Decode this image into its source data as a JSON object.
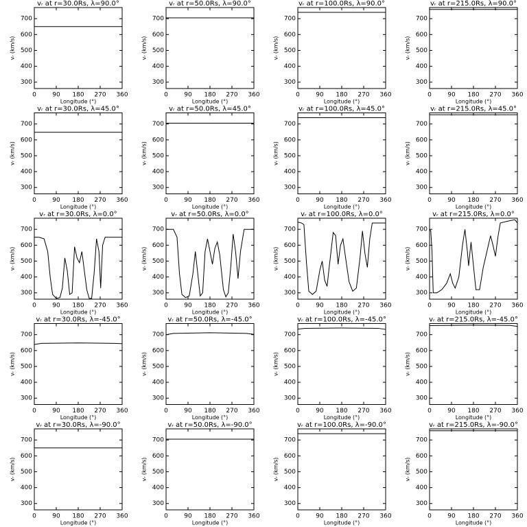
{
  "chart_data": [
    {
      "type": "line",
      "title": "vᵣ at r=30.0Rs, λ=90.0°",
      "xlabel": "Longitude (°)",
      "ylabel": "vᵣ (km/s)",
      "x": [
        0,
        360
      ],
      "series": [
        {
          "name": "vᵣ",
          "color": "#000000",
          "values": [
            650,
            650
          ]
        }
      ],
      "xlim": [
        0,
        360
      ],
      "xticks": [
        0,
        90,
        180,
        270,
        360
      ],
      "ylim": [
        260,
        770
      ],
      "yticks": [
        300,
        400,
        500,
        600,
        700
      ]
    },
    {
      "type": "line",
      "title": "vᵣ at r=50.0Rs, λ=90.0°",
      "xlabel": "Longitude (°)",
      "ylabel": "vᵣ (km/s)",
      "x": [
        0,
        360
      ],
      "series": [
        {
          "name": "vᵣ",
          "color": "#000000",
          "values": [
            705,
            705
          ]
        }
      ],
      "xlim": [
        0,
        360
      ],
      "xticks": [
        0,
        90,
        180,
        270,
        360
      ],
      "ylim": [
        260,
        770
      ],
      "yticks": [
        300,
        400,
        500,
        600,
        700
      ]
    },
    {
      "type": "line",
      "title": "vᵣ at r=100.0Rs, λ=90.0°",
      "xlabel": "Longitude (°)",
      "ylabel": "vᵣ (km/s)",
      "x": [
        0,
        360
      ],
      "series": [
        {
          "name": "vᵣ",
          "color": "#000000",
          "values": [
            740,
            740
          ]
        }
      ],
      "xlim": [
        0,
        360
      ],
      "xticks": [
        0,
        90,
        180,
        270,
        360
      ],
      "ylim": [
        260,
        770
      ],
      "yticks": [
        300,
        400,
        500,
        600,
        700
      ]
    },
    {
      "type": "line",
      "title": "vᵣ at r=215.0Rs, λ=90.0°",
      "xlabel": "Longitude (°)",
      "ylabel": "vᵣ (km/s)",
      "x": [
        0,
        360
      ],
      "series": [
        {
          "name": "vᵣ",
          "color": "#000000",
          "values": [
            758,
            758
          ]
        }
      ],
      "xlim": [
        0,
        360
      ],
      "xticks": [
        0,
        90,
        180,
        270,
        360
      ],
      "ylim": [
        260,
        770
      ],
      "yticks": [
        300,
        400,
        500,
        600,
        700
      ]
    },
    {
      "type": "line",
      "title": "vᵣ at r=30.0Rs, λ=45.0°",
      "xlabel": "Longitude (°)",
      "ylabel": "vᵣ (km/s)",
      "x": [
        0,
        360
      ],
      "series": [
        {
          "name": "vᵣ",
          "color": "#000000",
          "values": [
            648,
            648
          ]
        }
      ],
      "xlim": [
        0,
        360
      ],
      "xticks": [
        0,
        90,
        180,
        270,
        360
      ],
      "ylim": [
        260,
        770
      ],
      "yticks": [
        300,
        400,
        500,
        600,
        700
      ]
    },
    {
      "type": "line",
      "title": "vᵣ at r=50.0Rs, λ=45.0°",
      "xlabel": "Longitude (°)",
      "ylabel": "vᵣ (km/s)",
      "x": [
        0,
        360
      ],
      "series": [
        {
          "name": "vᵣ",
          "color": "#000000",
          "values": [
            705,
            705
          ]
        }
      ],
      "xlim": [
        0,
        360
      ],
      "xticks": [
        0,
        90,
        180,
        270,
        360
      ],
      "ylim": [
        260,
        770
      ],
      "yticks": [
        300,
        400,
        500,
        600,
        700
      ]
    },
    {
      "type": "line",
      "title": "vᵣ at r=100.0Rs, λ=45.0°",
      "xlabel": "Longitude (°)",
      "ylabel": "vᵣ (km/s)",
      "x": [
        0,
        360
      ],
      "series": [
        {
          "name": "vᵣ",
          "color": "#000000",
          "values": [
            740,
            740
          ]
        }
      ],
      "xlim": [
        0,
        360
      ],
      "xticks": [
        0,
        90,
        180,
        270,
        360
      ],
      "ylim": [
        260,
        770
      ],
      "yticks": [
        300,
        400,
        500,
        600,
        700
      ]
    },
    {
      "type": "line",
      "title": "vᵣ at r=215.0Rs, λ=45.0°",
      "xlabel": "Longitude (°)",
      "ylabel": "vᵣ (km/s)",
      "x": [
        0,
        360
      ],
      "series": [
        {
          "name": "vᵣ",
          "color": "#000000",
          "values": [
            758,
            758
          ]
        }
      ],
      "xlim": [
        0,
        360
      ],
      "xticks": [
        0,
        90,
        180,
        270,
        360
      ],
      "ylim": [
        260,
        770
      ],
      "yticks": [
        300,
        400,
        500,
        600,
        700
      ]
    },
    {
      "type": "line",
      "title": "vᵣ at r=30.0Rs, λ=0.0°",
      "xlabel": "Longitude (°)",
      "ylabel": "vᵣ (km/s)",
      "x": [
        0,
        20,
        40,
        55,
        65,
        75,
        90,
        105,
        115,
        125,
        135,
        145,
        155,
        165,
        175,
        185,
        195,
        205,
        215,
        225,
        235,
        245,
        255,
        265,
        272,
        280,
        290,
        360
      ],
      "series": [
        {
          "name": "vᵣ",
          "color": "#000000",
          "values": [
            650,
            650,
            640,
            560,
            400,
            290,
            265,
            270,
            330,
            520,
            440,
            290,
            300,
            590,
            520,
            490,
            560,
            440,
            320,
            265,
            265,
            420,
            640,
            560,
            330,
            600,
            650,
            650
          ]
        }
      ],
      "xlim": [
        0,
        360
      ],
      "xticks": [
        0,
        90,
        180,
        270,
        360
      ],
      "ylim": [
        260,
        770
      ],
      "yticks": [
        300,
        400,
        500,
        600,
        700
      ]
    },
    {
      "type": "line",
      "title": "vᵣ at r=50.0Rs, λ=0.0°",
      "xlabel": "Longitude (°)",
      "ylabel": "vᵣ (km/s)",
      "x": [
        0,
        30,
        45,
        55,
        65,
        80,
        95,
        110,
        120,
        130,
        140,
        150,
        160,
        170,
        180,
        190,
        200,
        210,
        220,
        235,
        245,
        255,
        265,
        275,
        285,
        295,
        305,
        320,
        360
      ],
      "series": [
        {
          "name": "vᵣ",
          "color": "#000000",
          "values": [
            700,
            700,
            650,
            420,
            290,
            270,
            280,
            420,
            560,
            420,
            280,
            300,
            560,
            640,
            560,
            480,
            580,
            620,
            540,
            320,
            275,
            300,
            460,
            670,
            560,
            390,
            560,
            700,
            700
          ]
        }
      ],
      "xlim": [
        0,
        360
      ],
      "xticks": [
        0,
        90,
        180,
        270,
        360
      ],
      "ylim": [
        260,
        770
      ],
      "yticks": [
        300,
        400,
        500,
        600,
        700
      ]
    },
    {
      "type": "line",
      "title": "vᵣ at r=100.0Rs, λ=0.0°",
      "xlabel": "Longitude (°)",
      "ylabel": "vᵣ (km/s)",
      "x": [
        0,
        15,
        25,
        35,
        45,
        60,
        75,
        90,
        100,
        110,
        120,
        130,
        145,
        155,
        165,
        175,
        185,
        195,
        210,
        225,
        240,
        255,
        265,
        275,
        285,
        295,
        305,
        360
      ],
      "series": [
        {
          "name": "vᵣ",
          "color": "#000000",
          "values": [
            745,
            740,
            730,
            500,
            310,
            290,
            310,
            440,
            500,
            380,
            340,
            480,
            680,
            660,
            480,
            600,
            640,
            530,
            370,
            310,
            330,
            520,
            690,
            550,
            460,
            640,
            740,
            740
          ]
        }
      ],
      "xlim": [
        0,
        360
      ],
      "xticks": [
        0,
        90,
        180,
        270,
        360
      ],
      "ylim": [
        260,
        770
      ],
      "yticks": [
        300,
        400,
        500,
        600,
        700
      ]
    },
    {
      "type": "line",
      "title": "vᵣ at r=215.0Rs, λ=0.0°",
      "xlabel": "Longitude (°)",
      "ylabel": "vᵣ (km/s)",
      "x": [
        0,
        5,
        10,
        15,
        30,
        50,
        70,
        85,
        95,
        105,
        120,
        135,
        145,
        155,
        160,
        170,
        180,
        190,
        205,
        220,
        235,
        250,
        260,
        270,
        280,
        290,
        330,
        350,
        360
      ],
      "series": [
        {
          "name": "vᵣ",
          "color": "#000000",
          "values": [
            700,
            690,
            560,
            300,
            300,
            320,
            360,
            420,
            360,
            330,
            400,
            600,
            700,
            560,
            470,
            620,
            470,
            320,
            320,
            460,
            560,
            660,
            600,
            530,
            650,
            740,
            755,
            760,
            740
          ]
        }
      ],
      "xlim": [
        0,
        360
      ],
      "xticks": [
        0,
        90,
        180,
        270,
        360
      ],
      "ylim": [
        260,
        770
      ],
      "yticks": [
        300,
        400,
        500,
        600,
        700
      ]
    },
    {
      "type": "line",
      "title": "vᵣ at r=30.0Rs, λ=-45.0°",
      "xlabel": "Longitude (°)",
      "ylabel": "vᵣ (km/s)",
      "x": [
        0,
        30,
        180,
        330,
        360
      ],
      "series": [
        {
          "name": "vᵣ",
          "color": "#000000",
          "values": [
            638,
            645,
            648,
            645,
            643
          ]
        }
      ],
      "xlim": [
        0,
        360
      ],
      "xticks": [
        0,
        90,
        180,
        270,
        360
      ],
      "ylim": [
        260,
        770
      ],
      "yticks": [
        300,
        400,
        500,
        600,
        700
      ]
    },
    {
      "type": "line",
      "title": "vᵣ at r=50.0Rs, λ=-45.0°",
      "xlabel": "Longitude (°)",
      "ylabel": "vᵣ (km/s)",
      "x": [
        0,
        30,
        180,
        330,
        360
      ],
      "series": [
        {
          "name": "vᵣ",
          "color": "#000000",
          "values": [
            700,
            708,
            712,
            708,
            702
          ]
        }
      ],
      "xlim": [
        0,
        360
      ],
      "xticks": [
        0,
        90,
        180,
        270,
        360
      ],
      "ylim": [
        260,
        770
      ],
      "yticks": [
        300,
        400,
        500,
        600,
        700
      ]
    },
    {
      "type": "line",
      "title": "vᵣ at r=100.0Rs, λ=-45.0°",
      "xlabel": "Longitude (°)",
      "ylabel": "vᵣ (km/s)",
      "x": [
        0,
        30,
        180,
        330,
        360
      ],
      "series": [
        {
          "name": "vᵣ",
          "color": "#000000",
          "values": [
            735,
            740,
            742,
            740,
            733
          ]
        }
      ],
      "xlim": [
        0,
        360
      ],
      "xticks": [
        0,
        90,
        180,
        270,
        360
      ],
      "ylim": [
        260,
        770
      ],
      "yticks": [
        300,
        400,
        500,
        600,
        700
      ]
    },
    {
      "type": "line",
      "title": "vᵣ at r=215.0Rs, λ=-45.0°",
      "xlabel": "Longitude (°)",
      "ylabel": "vᵣ (km/s)",
      "x": [
        0,
        180,
        330,
        360
      ],
      "series": [
        {
          "name": "vᵣ",
          "color": "#000000",
          "values": [
            757,
            760,
            758,
            752
          ]
        }
      ],
      "xlim": [
        0,
        360
      ],
      "xticks": [
        0,
        90,
        180,
        270,
        360
      ],
      "ylim": [
        260,
        770
      ],
      "yticks": [
        300,
        400,
        500,
        600,
        700
      ]
    },
    {
      "type": "line",
      "title": "vᵣ at r=30.0Rs, λ=-90.0°",
      "xlabel": "Longitude (°)",
      "ylabel": "vᵣ (km/s)",
      "x": [
        0,
        360
      ],
      "series": [
        {
          "name": "vᵣ",
          "color": "#000000",
          "values": [
            650,
            650
          ]
        }
      ],
      "xlim": [
        0,
        360
      ],
      "xticks": [
        0,
        90,
        180,
        270,
        360
      ],
      "ylim": [
        260,
        770
      ],
      "yticks": [
        300,
        400,
        500,
        600,
        700
      ]
    },
    {
      "type": "line",
      "title": "vᵣ at r=50.0Rs, λ=-90.0°",
      "xlabel": "Longitude (°)",
      "ylabel": "vᵣ (km/s)",
      "x": [
        0,
        360
      ],
      "series": [
        {
          "name": "vᵣ",
          "color": "#000000",
          "values": [
            705,
            705
          ]
        }
      ],
      "xlim": [
        0,
        360
      ],
      "xticks": [
        0,
        90,
        180,
        270,
        360
      ],
      "ylim": [
        260,
        770
      ],
      "yticks": [
        300,
        400,
        500,
        600,
        700
      ]
    },
    {
      "type": "line",
      "title": "vᵣ at r=100.0Rs, λ=-90.0°",
      "xlabel": "Longitude (°)",
      "ylabel": "vᵣ (km/s)",
      "x": [
        0,
        360
      ],
      "series": [
        {
          "name": "vᵣ",
          "color": "#000000",
          "values": [
            740,
            740
          ]
        }
      ],
      "xlim": [
        0,
        360
      ],
      "xticks": [
        0,
        90,
        180,
        270,
        360
      ],
      "ylim": [
        260,
        770
      ],
      "yticks": [
        300,
        400,
        500,
        600,
        700
      ]
    },
    {
      "type": "line",
      "title": "vᵣ at r=215.0Rs, λ=-90.0°",
      "xlabel": "Longitude (°)",
      "ylabel": "vᵣ (km/s)",
      "x": [
        0,
        360
      ],
      "series": [
        {
          "name": "vᵣ",
          "color": "#000000",
          "values": [
            758,
            758
          ]
        }
      ],
      "xlim": [
        0,
        360
      ],
      "xticks": [
        0,
        90,
        180,
        270,
        360
      ],
      "ylim": [
        260,
        770
      ],
      "yticks": [
        300,
        400,
        500,
        600,
        700
      ]
    }
  ]
}
